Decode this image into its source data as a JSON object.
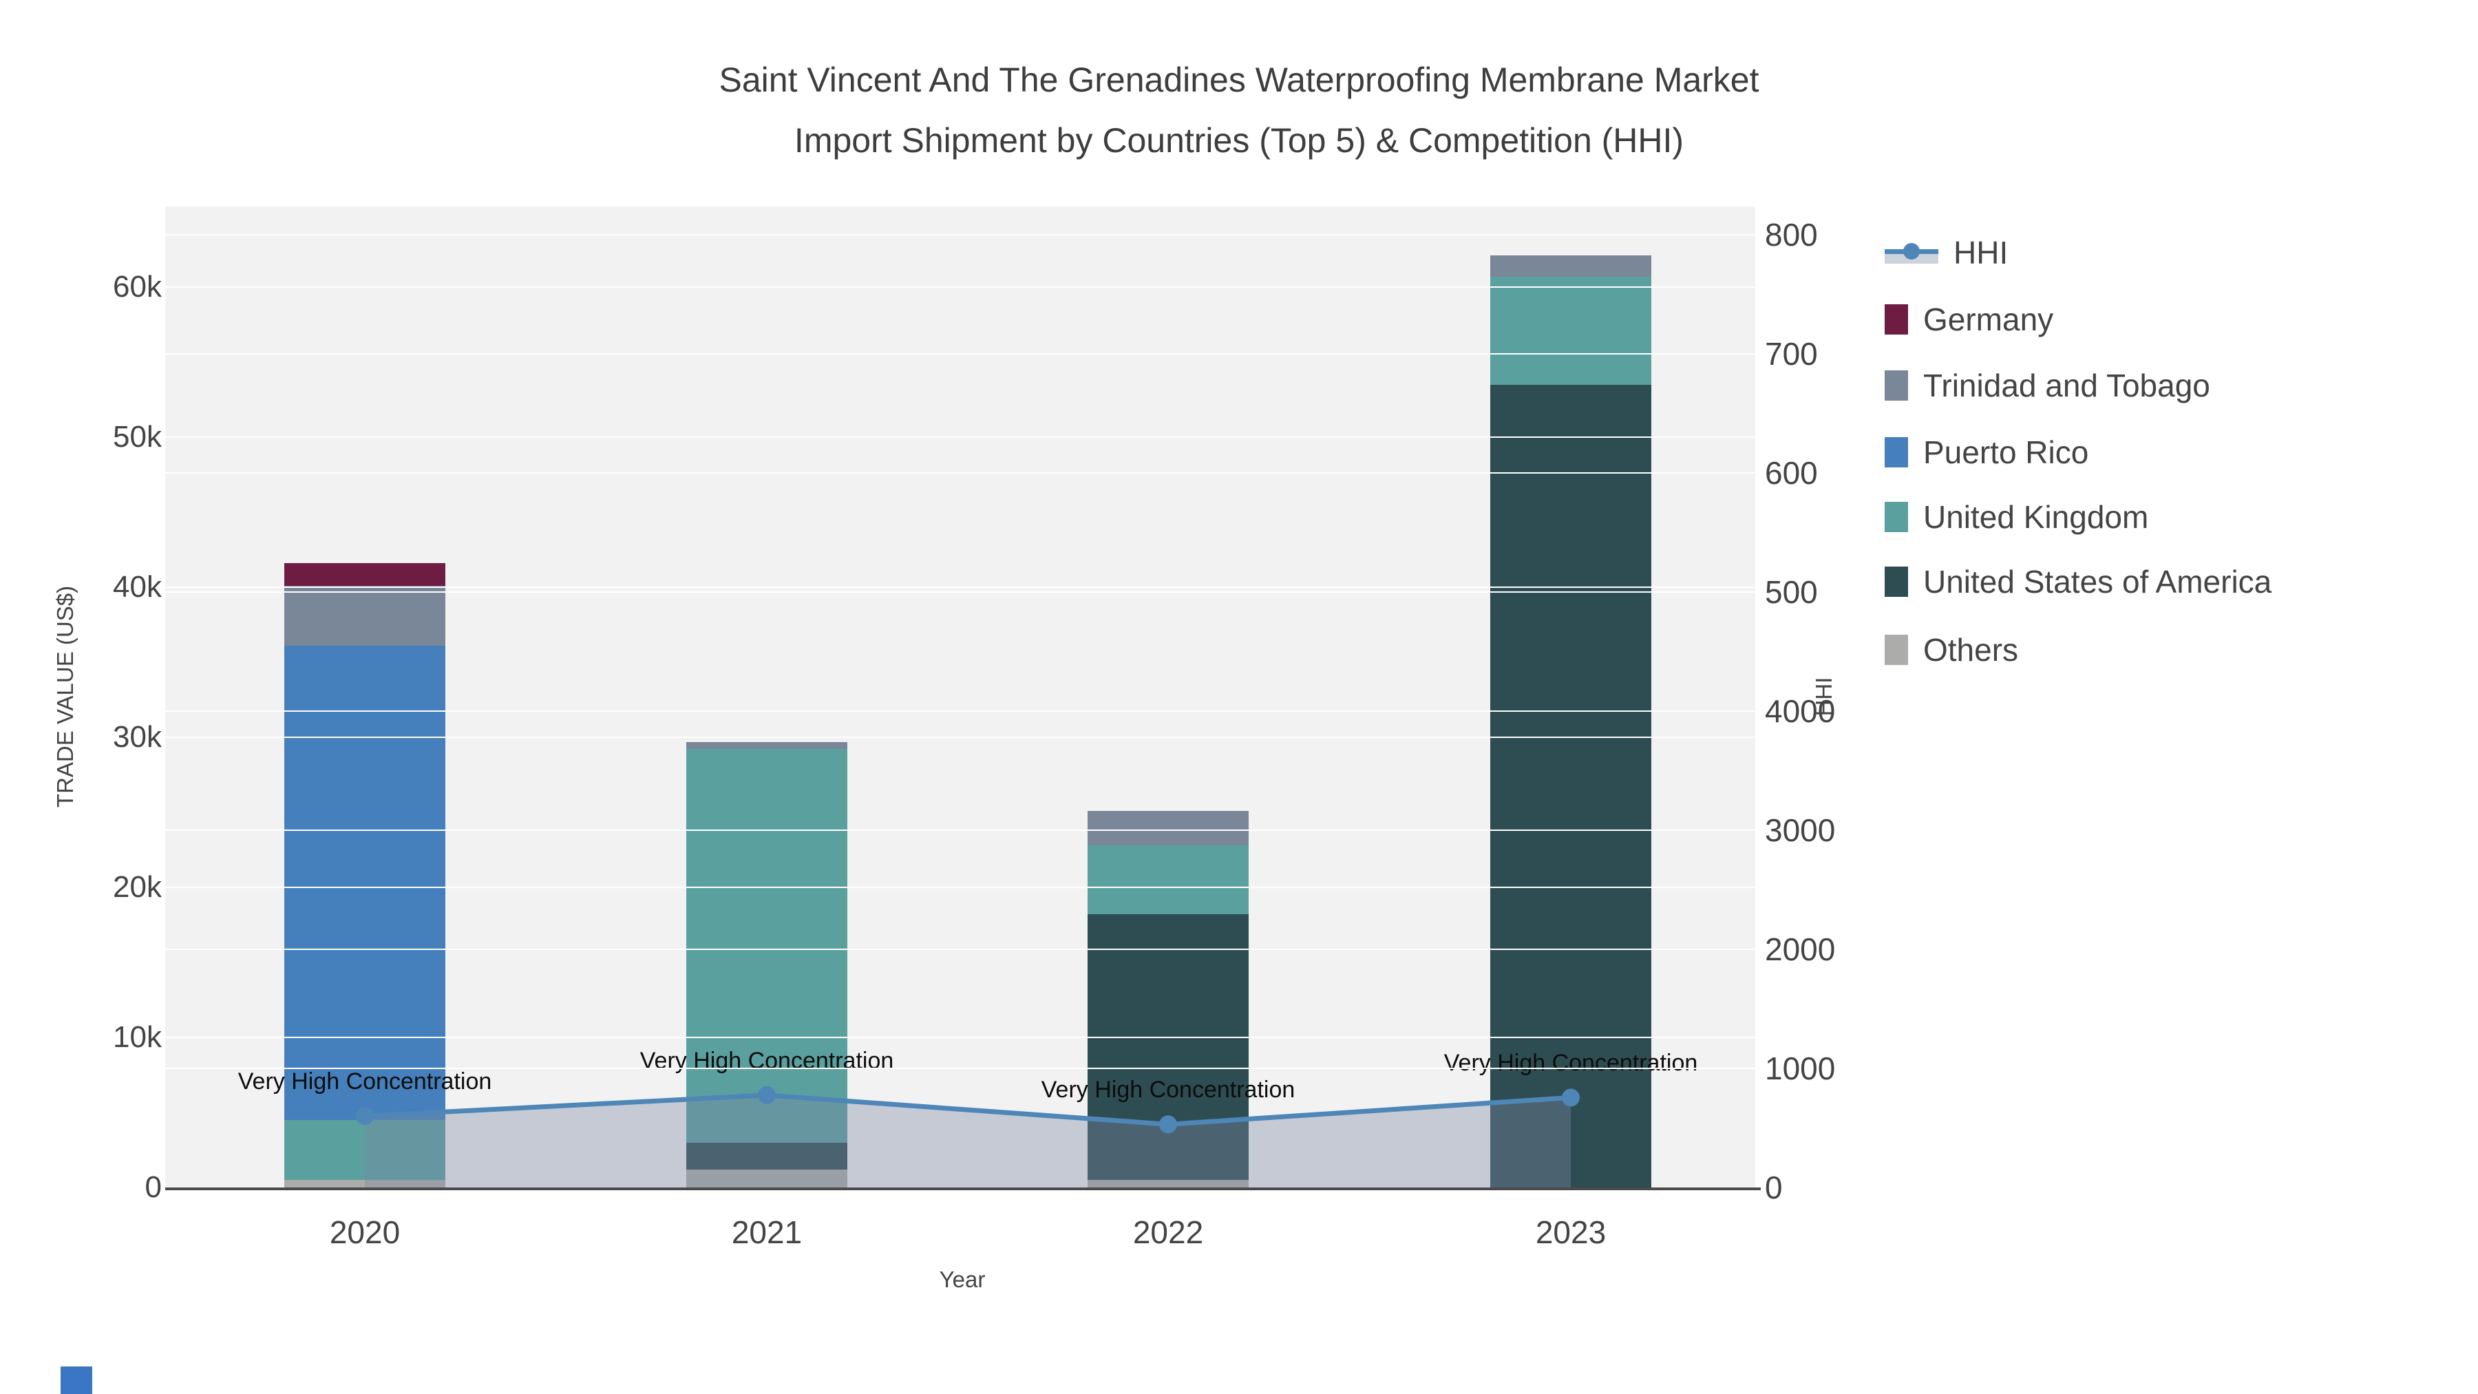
{
  "title": {
    "line1": "Saint Vincent And The Grenadines Waterproofing Membrane Market",
    "line2": "Import Shipment by Countries (Top 5) & Competition (HHI)"
  },
  "chart_data": {
    "type": "combo: stacked bar (trade value) + line (HHI)",
    "categories": [
      "2020",
      "2021",
      "2022",
      "2023"
    ],
    "series": [
      {
        "name": "Germany",
        "color": "#6E1C41",
        "values": [
          1500,
          0,
          0,
          0
        ]
      },
      {
        "name": "Trinidad and Tobago",
        "color": "#7A8799",
        "values": [
          4000,
          500,
          2300,
          1400
        ]
      },
      {
        "name": "Puerto Rico",
        "color": "#4580BD",
        "values": [
          31600,
          0,
          0,
          0
        ]
      },
      {
        "name": "United Kingdom",
        "color": "#5AA09F",
        "values": [
          4000,
          26200,
          4600,
          7200
        ]
      },
      {
        "name": "United States of America",
        "color": "#2E4D52",
        "values": [
          0,
          1800,
          17700,
          53500
        ]
      },
      {
        "name": "Others",
        "color": "#ACACAA",
        "values": [
          500,
          1200,
          500,
          0
        ]
      }
    ],
    "hhi": {
      "name": "HHI",
      "color": "#4E86B8",
      "area_color": "rgba(123,137,162,0.38)",
      "values": [
        600,
        775,
        530,
        755
      ]
    },
    "annotation_text": "Very High Concentration",
    "xlabel": "Year",
    "ylabel_left": "TRADE VALUE (US$)",
    "ylabel_right": "HHI",
    "yticks_left": [
      "0",
      "10k",
      "20k",
      "30k",
      "40k",
      "50k",
      "60k"
    ],
    "yticks_right": [
      "0",
      "1000",
      "2000",
      "3000",
      "4000",
      "500",
      "600",
      "700",
      "800"
    ],
    "ylim_left": [
      0,
      65000
    ],
    "legend_position": "right-top",
    "grid": "on, white gridlines for both y axes on #f2f2f2 plot background"
  }
}
